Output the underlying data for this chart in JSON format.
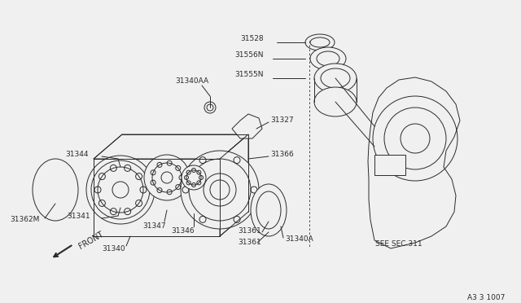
{
  "bg_color": "#f0f0f0",
  "line_color": "#2a2a2a",
  "text_color": "#2a2a2a",
  "figsize": [
    6.4,
    3.72
  ],
  "dpi": 100,
  "watermark": "A3 3 1007",
  "see_sec": "SEE SEC.311",
  "front_label": "FRONT"
}
